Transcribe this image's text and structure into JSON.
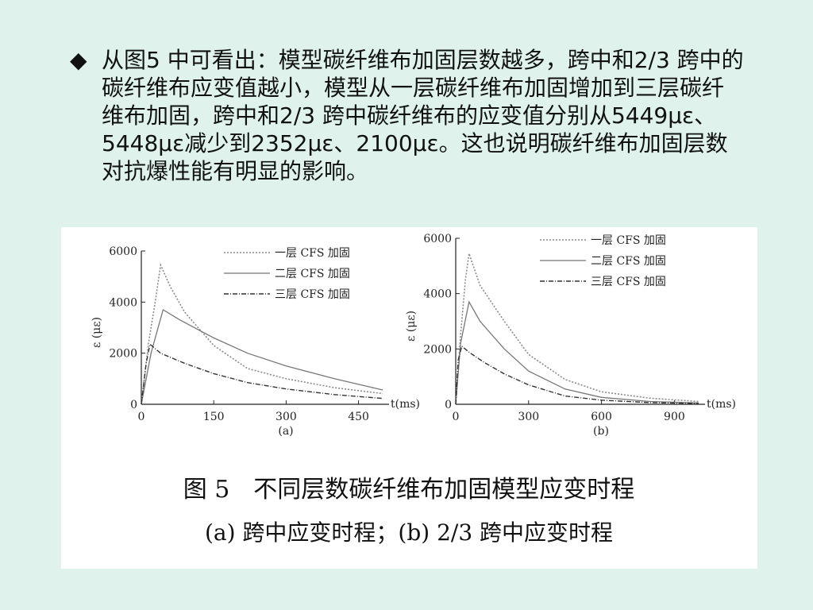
{
  "slide": {
    "bullet": "◆",
    "paragraph": "从图5 中可看出：模型碳纤维布加固层数越多，跨中和2/3 跨中的碳纤维布应变值越小，模型从一层碳纤维布加固增加到三层碳纤维布加固，跨中和2/3 跨中碳纤维布的应变值分别从5449με、5448με减少到2352με、2100με。这也说明碳纤维布加固层数对抗爆性能有明显的影响。"
  },
  "figure": {
    "caption": "图 5　不同层数碳纤维布加固模型应变时程",
    "subcaption": "(a) 跨中应变时程；(b) 2/3 跨中应变时程"
  },
  "chart_data": [
    {
      "type": "line",
      "panel_label": "(a)",
      "ylabel": "ε (με)",
      "xlabel": "t(ms)",
      "xlim": [
        0,
        500
      ],
      "ylim": [
        0,
        6000
      ],
      "xticks": [
        0,
        150,
        300,
        450
      ],
      "yticks": [
        0,
        2000,
        4000,
        6000
      ],
      "grid": false,
      "legend_position": "top-right",
      "series": [
        {
          "name": "一层 CFS 加固",
          "style": "dotted",
          "x": [
            0,
            15,
            28,
            40,
            60,
            90,
            150,
            220,
            300,
            400,
            500
          ],
          "y": [
            0,
            2400,
            3900,
            5449,
            4600,
            3600,
            2300,
            1400,
            1000,
            650,
            420
          ]
        },
        {
          "name": "二层 CFS 加固",
          "style": "solid",
          "x": [
            0,
            20,
            45,
            80,
            150,
            220,
            300,
            400,
            500
          ],
          "y": [
            0,
            2000,
            3700,
            3300,
            2600,
            2000,
            1500,
            1000,
            560
          ]
        },
        {
          "name": "三层 CFS 加固",
          "style": "dashdot",
          "x": [
            0,
            10,
            18,
            40,
            90,
            150,
            220,
            300,
            400,
            500
          ],
          "y": [
            0,
            1600,
            2352,
            2000,
            1600,
            1200,
            850,
            600,
            380,
            230
          ]
        }
      ]
    },
    {
      "type": "line",
      "panel_label": "(b)",
      "ylabel": "ε (με)",
      "xlabel": "t(ms)",
      "xlim": [
        0,
        1000
      ],
      "ylim": [
        0,
        6000
      ],
      "xticks": [
        0,
        300,
        600,
        900
      ],
      "yticks": [
        0,
        2000,
        4000,
        6000
      ],
      "grid": false,
      "legend_position": "top-right",
      "series": [
        {
          "name": "一层 CFS 加固",
          "style": "dotted",
          "x": [
            0,
            20,
            40,
            55,
            100,
            200,
            300,
            450,
            600,
            800,
            1000
          ],
          "y": [
            0,
            2500,
            4500,
            5448,
            4300,
            3000,
            1800,
            900,
            450,
            220,
            100
          ]
        },
        {
          "name": "二层 CFS 加固",
          "style": "solid",
          "x": [
            0,
            20,
            55,
            100,
            200,
            300,
            450,
            600,
            800,
            1000
          ],
          "y": [
            0,
            2200,
            3700,
            3000,
            2000,
            1200,
            550,
            250,
            100,
            50
          ]
        },
        {
          "name": "三层 CFS 加固",
          "style": "dashdot",
          "x": [
            0,
            10,
            25,
            60,
            120,
            200,
            300,
            450,
            600,
            800,
            1000
          ],
          "y": [
            0,
            1600,
            2100,
            1850,
            1500,
            1100,
            700,
            300,
            150,
            60,
            30
          ]
        }
      ]
    }
  ]
}
